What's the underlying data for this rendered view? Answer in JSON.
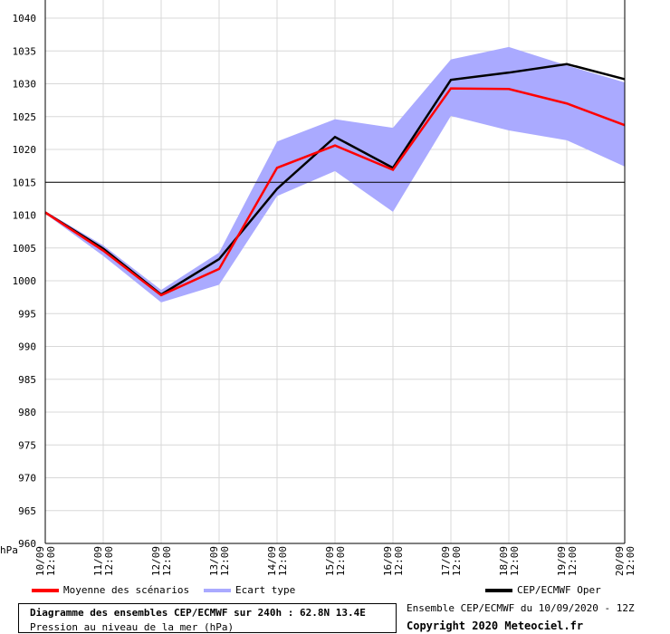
{
  "chart_data": {
    "type": "line",
    "unit_label": "hPa",
    "ylim": [
      960,
      1040
    ],
    "y_ticks": [
      1040,
      1035,
      1030,
      1025,
      1020,
      1015,
      1010,
      1005,
      1000,
      995,
      990,
      985,
      980,
      975,
      970,
      965,
      960
    ],
    "reference_line": 1015,
    "x_labels": [
      {
        "date": "10/09",
        "time": "12:00"
      },
      {
        "date": "11/09",
        "time": "12:00"
      },
      {
        "date": "12/09",
        "time": "12:00"
      },
      {
        "date": "13/09",
        "time": "12:00"
      },
      {
        "date": "14/09",
        "time": "12:00"
      },
      {
        "date": "15/09",
        "time": "12:00"
      },
      {
        "date": "16/09",
        "time": "12:00"
      },
      {
        "date": "17/09",
        "time": "12:00"
      },
      {
        "date": "18/09",
        "time": "12:00"
      },
      {
        "date": "19/09",
        "time": "12:00"
      },
      {
        "date": "20/09",
        "time": "12:00"
      }
    ],
    "series": [
      {
        "name": "Moyenne des scénarios",
        "color": "#ff0000",
        "values": [
          1010.4,
          1004.6,
          997.8,
          1001.8,
          1017.2,
          1020.6,
          1016.9,
          1029.3,
          1029.2,
          1027.0,
          1023.7
        ]
      },
      {
        "name": "CEP/ECMWF Oper",
        "color": "#000000",
        "values": [
          1010.4,
          1004.9,
          997.9,
          1003.3,
          1014.0,
          1021.9,
          1017.2,
          1030.6,
          1031.7,
          1033.0,
          1030.7
        ]
      },
      {
        "name": "Ecart type",
        "color": "#aaaaff",
        "upper": [
          1010.6,
          1005.4,
          998.6,
          1004.3,
          1021.2,
          1024.6,
          1023.3,
          1033.7,
          1035.6,
          1032.8,
          1030.2
        ],
        "lower": [
          1010.2,
          1003.8,
          996.7,
          999.4,
          1012.9,
          1016.7,
          1010.5,
          1025.1,
          1022.9,
          1021.4,
          1017.4
        ]
      }
    ]
  },
  "legend": {
    "mean_label": "Moyenne des scénarios",
    "spread_label": "Ecart type",
    "oper_label": "CEP/ECMWF Oper"
  },
  "footer": {
    "title": "Diagramme des ensembles CEP/ECMWF sur 240h : 62.8N 13.4E",
    "subtitle": "Pression au niveau de la mer (hPa)",
    "ensemble_info": "Ensemble CEP/ECMWF du 10/09/2020 - 12Z",
    "copyright": "Copyright 2020 Meteociel.fr"
  },
  "colors": {
    "mean": "#ff0000",
    "spread": "#aaaaff",
    "oper": "#000000"
  }
}
